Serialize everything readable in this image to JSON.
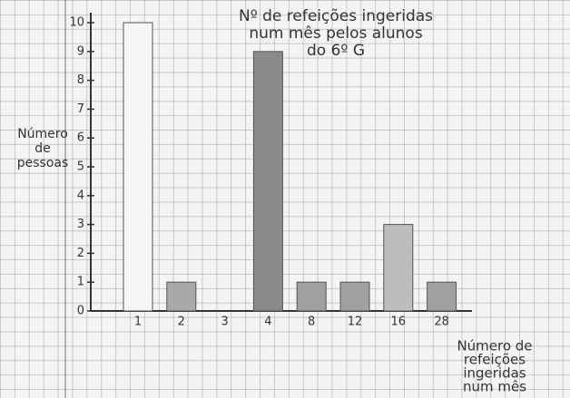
{
  "chart_data": {
    "type": "bar",
    "title": [
      "Nº de refeições ingeridas",
      "num mês pelos alunos",
      "do 6º G"
    ],
    "y_label": [
      "Número",
      "de",
      "pessoas"
    ],
    "x_label": [
      "Número de",
      "refeições",
      "ingeridas",
      "num mês"
    ],
    "categories": [
      "1",
      "2",
      "3",
      "4",
      "8",
      "12",
      "16",
      "28"
    ],
    "values": [
      10,
      1,
      0,
      9,
      1,
      1,
      3,
      1
    ],
    "colors": [
      "#f6f6f4",
      "#a9a9a9",
      "#a9a9a9",
      "#8a8a8a",
      "#a0a0a0",
      "#a0a0a0",
      "#bdbdbd",
      "#a0a0a0"
    ],
    "ylim": [
      0,
      10
    ],
    "yticks": [
      0,
      1,
      2,
      3,
      4,
      5,
      6,
      7,
      8,
      9,
      10
    ]
  }
}
